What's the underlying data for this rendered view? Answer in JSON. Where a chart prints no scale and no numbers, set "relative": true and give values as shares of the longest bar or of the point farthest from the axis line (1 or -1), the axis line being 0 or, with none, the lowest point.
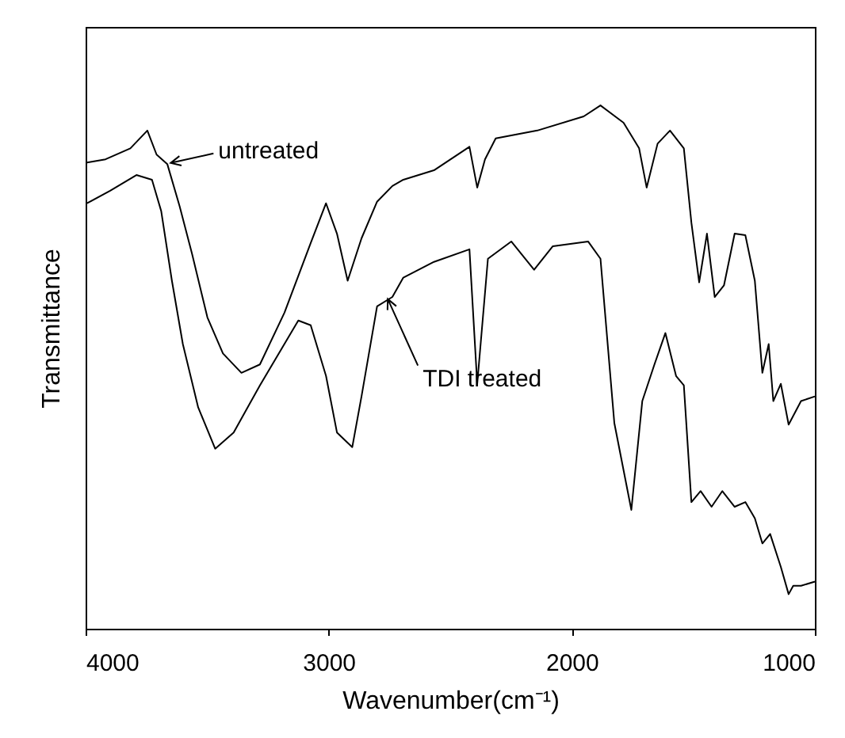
{
  "chart_data": {
    "type": "line",
    "relative": true,
    "xlabel": "Wavenumber(cm⁻¹)",
    "ylabel": "Transmittance",
    "xlim": [
      4000,
      1000
    ],
    "xticks": [
      4000,
      3000,
      2000,
      1000
    ],
    "grid": false,
    "marker": "none",
    "line_style": "solid",
    "annotations": [
      {
        "text": "untreated",
        "x": 3650,
        "y": 0.89
      },
      {
        "text": "TDI treated",
        "x": 2757,
        "y": 0.63
      }
    ],
    "series": [
      {
        "color": "#000000",
        "x": [
          3994,
          3918,
          3816,
          3746,
          3708,
          3664,
          3613,
          3562,
          3499,
          3435,
          3359,
          3283,
          3182,
          3074,
          3011,
          2966,
          2922,
          2865,
          2801,
          2738,
          2693,
          2567,
          2421,
          2389,
          2357,
          2313,
          2142,
          1951,
          1882,
          1787,
          1723,
          1692,
          1647,
          1596,
          1539,
          1508,
          1476,
          1444,
          1412,
          1374,
          1330,
          1286,
          1247,
          1216,
          1190,
          1171,
          1140,
          1108,
          1057,
          1000
        ],
        "values": [
          0.891,
          0.897,
          0.918,
          0.952,
          0.906,
          0.888,
          0.807,
          0.716,
          0.595,
          0.526,
          0.489,
          0.505,
          0.604,
          0.737,
          0.813,
          0.755,
          0.665,
          0.746,
          0.816,
          0.846,
          0.858,
          0.876,
          0.921,
          0.843,
          0.897,
          0.937,
          0.952,
          0.979,
          1,
          0.967,
          0.918,
          0.843,
          0.927,
          0.952,
          0.918,
          0.776,
          0.662,
          0.755,
          0.634,
          0.656,
          0.755,
          0.752,
          0.665,
          0.489,
          0.544,
          0.435,
          0.468,
          0.39,
          0.435,
          0.444
        ]
      },
      {
        "color": "#000000",
        "x": [
          3994,
          3899,
          3791,
          3727,
          3689,
          3645,
          3600,
          3537,
          3467,
          3391,
          3283,
          3125,
          3074,
          3011,
          2966,
          2903,
          2865,
          2801,
          2738,
          2693,
          2567,
          2421,
          2389,
          2345,
          2249,
          2155,
          2078,
          1933,
          1882,
          1825,
          1755,
          1710,
          1660,
          1615,
          1571,
          1539,
          1508,
          1470,
          1425,
          1381,
          1330,
          1286,
          1247,
          1216,
          1184,
          1140,
          1108,
          1089,
          1057,
          1000
        ],
        "values": [
          0.813,
          0.837,
          0.867,
          0.858,
          0.798,
          0.665,
          0.544,
          0.423,
          0.344,
          0.375,
          0.465,
          0.589,
          0.58,
          0.483,
          0.375,
          0.347,
          0.444,
          0.616,
          0.634,
          0.671,
          0.701,
          0.725,
          0.468,
          0.707,
          0.74,
          0.686,
          0.731,
          0.74,
          0.707,
          0.393,
          0.227,
          0.435,
          0.505,
          0.565,
          0.483,
          0.465,
          0.242,
          0.263,
          0.233,
          0.263,
          0.233,
          0.242,
          0.211,
          0.163,
          0.181,
          0.118,
          0.066,
          0.082,
          0.082,
          0.09
        ]
      }
    ]
  }
}
